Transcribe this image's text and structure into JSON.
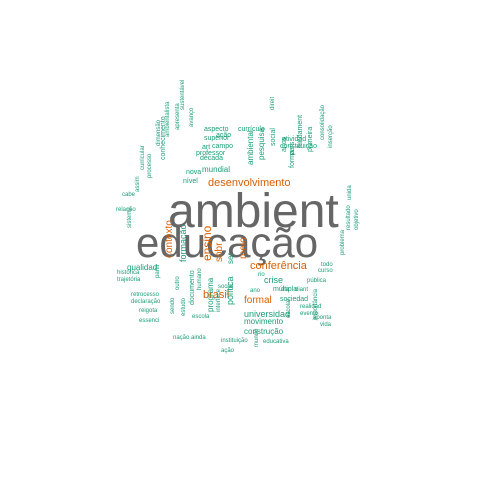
{
  "colors": {
    "dark": "#666666",
    "orange": "#d95f02",
    "teal": "#1b9e77"
  },
  "words": [
    {
      "text": "ambient",
      "color": "dark"
    },
    {
      "text": "educação",
      "color": "dark"
    },
    {
      "text": "desenvolvimento",
      "color": "orange"
    },
    {
      "text": "conferência",
      "color": "orange"
    },
    {
      "text": "ensino",
      "color": "orange"
    },
    {
      "text": "sobr",
      "color": "orange"
    },
    {
      "text": "brasil",
      "color": "orange"
    },
    {
      "text": "meio",
      "color": "orange"
    },
    {
      "text": "formal",
      "color": "orange"
    },
    {
      "text": "contexto",
      "color": "orange"
    },
    {
      "text": "formação",
      "color": "teal"
    },
    {
      "text": "universidad",
      "color": "teal"
    },
    {
      "text": "crise",
      "color": "teal"
    },
    {
      "text": "ser",
      "color": "teal"
    },
    {
      "text": "política",
      "color": "teal"
    },
    {
      "text": "programa",
      "color": "teal"
    },
    {
      "text": "movimento",
      "color": "teal"
    },
    {
      "text": "construção",
      "color": "teal"
    },
    {
      "text": "múltipla",
      "color": "teal"
    },
    {
      "text": "sociedad",
      "color": "teal"
    },
    {
      "text": "qualidad",
      "color": "teal"
    },
    {
      "text": "mundial",
      "color": "teal"
    },
    {
      "text": "década",
      "color": "teal"
    },
    {
      "text": "nova",
      "color": "teal"
    },
    {
      "text": "nível",
      "color": "teal"
    },
    {
      "text": "ambiental",
      "color": "teal"
    },
    {
      "text": "pesquisa",
      "color": "teal"
    },
    {
      "text": "professor",
      "color": "teal"
    },
    {
      "text": "ação",
      "color": "teal"
    },
    {
      "text": "campo",
      "color": "teal"
    },
    {
      "text": "art",
      "color": "teal"
    },
    {
      "text": "superior",
      "color": "teal"
    },
    {
      "text": "aspecto",
      "color": "teal"
    },
    {
      "text": "currículo",
      "color": "teal"
    },
    {
      "text": "atividad",
      "color": "teal"
    },
    {
      "text": "constituição",
      "color": "teal"
    },
    {
      "text": "social",
      "color": "teal"
    },
    {
      "text": "anos",
      "color": "teal"
    },
    {
      "text": "país",
      "color": "teal"
    },
    {
      "text": "fundament",
      "color": "teal"
    },
    {
      "text": "primeira",
      "color": "teal"
    },
    {
      "text": "forma",
      "color": "teal"
    },
    {
      "text": "conhecimento",
      "color": "teal"
    },
    {
      "text": "relação",
      "color": "teal"
    },
    {
      "text": "cabe",
      "color": "teal"
    },
    {
      "text": "sistema",
      "color": "teal"
    },
    {
      "text": "histórica",
      "color": "teal"
    },
    {
      "text": "trajetória",
      "color": "teal"
    },
    {
      "text": "retrocesso",
      "color": "teal"
    },
    {
      "text": "declaração",
      "color": "teal"
    },
    {
      "text": "reigota",
      "color": "teal"
    },
    {
      "text": "essenci",
      "color": "teal"
    },
    {
      "text": "partir",
      "color": "teal"
    },
    {
      "text": "sendo",
      "color": "teal"
    },
    {
      "text": "estudo",
      "color": "teal"
    },
    {
      "text": "documento",
      "color": "teal"
    },
    {
      "text": "humano",
      "color": "teal"
    },
    {
      "text": "outro",
      "color": "teal"
    },
    {
      "text": "escola",
      "color": "teal"
    },
    {
      "text": "interface",
      "color": "teal"
    },
    {
      "text": "ainda",
      "color": "teal"
    },
    {
      "text": "nação",
      "color": "teal"
    },
    {
      "text": "instituição",
      "color": "teal"
    },
    {
      "text": "educativa",
      "color": "teal"
    },
    {
      "text": "mundo",
      "color": "teal"
    },
    {
      "text": "ano",
      "color": "teal"
    },
    {
      "text": "social",
      "color": "teal"
    },
    {
      "text": "rio",
      "color": "teal"
    },
    {
      "text": "dia",
      "color": "teal"
    },
    {
      "text": "diant",
      "color": "teal"
    },
    {
      "text": "pública",
      "color": "teal"
    },
    {
      "text": "curso",
      "color": "teal"
    },
    {
      "text": "todo",
      "color": "teal"
    },
    {
      "text": "evento",
      "color": "teal"
    },
    {
      "text": "realidad",
      "color": "teal"
    },
    {
      "text": "aponta",
      "color": "teal"
    },
    {
      "text": "vida",
      "color": "teal"
    },
    {
      "text": "problema",
      "color": "teal"
    },
    {
      "text": "resultado",
      "color": "teal"
    },
    {
      "text": "objetivo",
      "color": "teal"
    },
    {
      "text": "unida",
      "color": "teal"
    },
    {
      "text": "importância",
      "color": "teal"
    },
    {
      "text": "escolar",
      "color": "teal"
    },
    {
      "text": "consolidação",
      "color": "teal"
    },
    {
      "text": "inserção",
      "color": "teal"
    },
    {
      "text": "direit",
      "color": "teal"
    },
    {
      "text": "sustentável",
      "color": "teal"
    },
    {
      "text": "avanço",
      "color": "teal"
    },
    {
      "text": "apresenta",
      "color": "teal"
    },
    {
      "text": "ambientalista",
      "color": "teal"
    },
    {
      "text": "dimensão",
      "color": "teal"
    },
    {
      "text": "curricular",
      "color": "teal"
    },
    {
      "text": "processo",
      "color": "teal"
    },
    {
      "text": "assim",
      "color": "teal"
    },
    {
      "text": "ação",
      "color": "teal"
    }
  ]
}
